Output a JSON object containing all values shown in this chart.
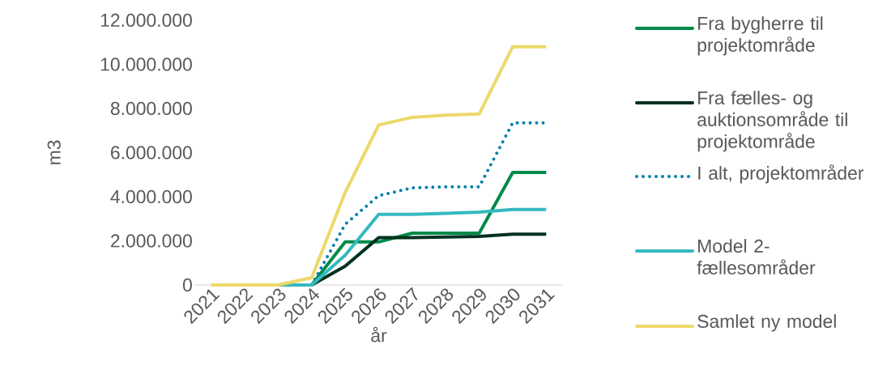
{
  "chart_data": {
    "type": "line",
    "xlabel": "år",
    "ylabel": "m3",
    "legend": "right",
    "marker": "none",
    "categories": [
      "2021",
      "2022",
      "2023",
      "2024",
      "2025",
      "2026",
      "2027",
      "2028",
      "2029",
      "2030",
      "2031"
    ],
    "ylim": [
      0,
      12000000
    ],
    "yticks": [
      {
        "value": 0,
        "label": "0"
      },
      {
        "value": 2000000,
        "label": "2.000.000"
      },
      {
        "value": 4000000,
        "label": "4.000.000"
      },
      {
        "value": 6000000,
        "label": "6.000.000"
      },
      {
        "value": 8000000,
        "label": "8.000.000"
      },
      {
        "value": 10000000,
        "label": "10.000.000"
      },
      {
        "value": 12000000,
        "label": "12.000.000"
      }
    ],
    "series": [
      {
        "name": "Fra bygherre til projektområde",
        "color": "#008a48",
        "line_style": "solid",
        "values": [
          null,
          null,
          null,
          0,
          1950000,
          1950000,
          2350000,
          2350000,
          2350000,
          5100000,
          5100000
        ]
      },
      {
        "name": "Fra fælles- og auktionsområde til projektområde",
        "color": "#00311f",
        "line_style": "solid",
        "values": [
          null,
          null,
          null,
          0,
          850000,
          2150000,
          2150000,
          2170000,
          2200000,
          2300000,
          2300000
        ]
      },
      {
        "name": "I alt, projektområder",
        "color": "#007fad",
        "line_style": "dotted",
        "values": [
          null,
          null,
          null,
          0,
          2750000,
          4050000,
          4400000,
          4450000,
          4450000,
          7350000,
          7350000
        ]
      },
      {
        "name": "Model 2- fællesområder",
        "color": "#35b9c0",
        "line_style": "solid",
        "values": [
          null,
          null,
          0,
          0,
          1350000,
          3200000,
          3200000,
          3250000,
          3300000,
          3420000,
          3420000
        ]
      },
      {
        "name": "Samlet ny model",
        "color": "#ecd96a",
        "line_style": "solid",
        "values": [
          0,
          0,
          0,
          330000,
          4200000,
          7250000,
          7600000,
          7700000,
          7750000,
          10800000,
          10800000
        ]
      }
    ]
  }
}
